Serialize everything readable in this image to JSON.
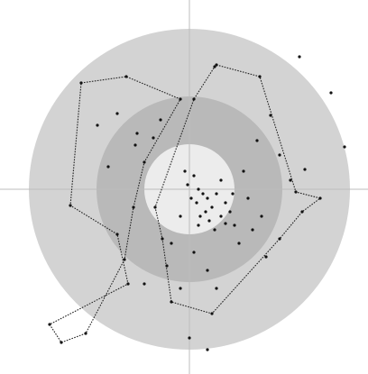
{
  "colors": {
    "background": "#ffffff",
    "ring_outer": "#d3d3d3",
    "ring_middle": "#b9b9b9",
    "ring_inner": "#ececec",
    "crosshair": "#bdbdbd",
    "polygon_stroke": "#222222",
    "point": "#111111"
  },
  "chart_data": {
    "type": "scatter",
    "xlim": [
      -210,
      210
    ],
    "ylim": [
      -210,
      210
    ],
    "rings": [
      {
        "name": "outer",
        "radius": 178
      },
      {
        "name": "middle",
        "radius": 103
      },
      {
        "name": "inner",
        "radius": 50
      }
    ],
    "crosshair": {
      "x": 0,
      "y": 0
    },
    "polygons": [
      {
        "name": "left-shape",
        "points": [
          [
            -120,
            118
          ],
          [
            -70,
            125
          ],
          [
            -10,
            100
          ],
          [
            -50,
            30
          ],
          [
            -62,
            -20
          ],
          [
            -72,
            -78
          ],
          [
            -115,
            -160
          ],
          [
            -142,
            -170
          ],
          [
            -155,
            -150
          ],
          [
            -68,
            -105
          ],
          [
            -80,
            -50
          ],
          [
            -132,
            -18
          ]
        ]
      },
      {
        "name": "right-shape",
        "points": [
          [
            30,
            138
          ],
          [
            78,
            125
          ],
          [
            118,
            -3
          ],
          [
            145,
            -10
          ],
          [
            125,
            -25
          ],
          [
            100,
            -55
          ],
          [
            25,
            -138
          ],
          [
            -20,
            -125
          ],
          [
            -30,
            -55
          ],
          [
            -38,
            -20
          ],
          [
            5,
            100
          ],
          [
            28,
            136
          ]
        ]
      }
    ],
    "points": [
      [
        -120,
        118
      ],
      [
        -70,
        125
      ],
      [
        -10,
        100
      ],
      [
        -50,
        30
      ],
      [
        -62,
        -20
      ],
      [
        -72,
        -78
      ],
      [
        -115,
        -160
      ],
      [
        -142,
        -170
      ],
      [
        -155,
        -150
      ],
      [
        -68,
        -105
      ],
      [
        -80,
        -50
      ],
      [
        -132,
        -18
      ],
      [
        30,
        138
      ],
      [
        78,
        125
      ],
      [
        118,
        -3
      ],
      [
        145,
        -10
      ],
      [
        125,
        -25
      ],
      [
        100,
        -55
      ],
      [
        25,
        -138
      ],
      [
        -20,
        -125
      ],
      [
        -30,
        -55
      ],
      [
        -38,
        -20
      ],
      [
        5,
        100
      ],
      [
        28,
        136
      ],
      [
        122,
        147
      ],
      [
        157,
        107
      ],
      [
        172,
        47
      ],
      [
        -80,
        84
      ],
      [
        -102,
        71
      ],
      [
        -58,
        62
      ],
      [
        -90,
        25
      ],
      [
        -60,
        49
      ],
      [
        -32,
        77
      ],
      [
        -40,
        57
      ],
      [
        90,
        82
      ],
      [
        75,
        54
      ],
      [
        100,
        38
      ],
      [
        128,
        22
      ],
      [
        112,
        10
      ],
      [
        -5,
        20
      ],
      [
        5,
        15
      ],
      [
        10,
        0
      ],
      [
        15,
        -5
      ],
      [
        20,
        -10
      ],
      [
        8,
        -15
      ],
      [
        25,
        -20
      ],
      [
        30,
        -5
      ],
      [
        18,
        -25
      ],
      [
        12,
        -30
      ],
      [
        22,
        -35
      ],
      [
        35,
        -30
      ],
      [
        40,
        -15
      ],
      [
        45,
        -25
      ],
      [
        10,
        -40
      ],
      [
        28,
        -45
      ],
      [
        40,
        -38
      ],
      [
        2,
        -10
      ],
      [
        -2,
        5
      ],
      [
        35,
        10
      ],
      [
        48,
        -5
      ],
      [
        50,
        -40
      ],
      [
        -10,
        -30
      ],
      [
        60,
        20
      ],
      [
        65,
        -10
      ],
      [
        70,
        -45
      ],
      [
        55,
        -60
      ],
      [
        80,
        -30
      ],
      [
        85,
        -75
      ],
      [
        -20,
        -60
      ],
      [
        -25,
        -85
      ],
      [
        5,
        -70
      ],
      [
        20,
        -90
      ],
      [
        -50,
        -105
      ],
      [
        -10,
        -110
      ],
      [
        30,
        -110
      ],
      [
        0,
        -165
      ],
      [
        20,
        -178
      ]
    ]
  }
}
